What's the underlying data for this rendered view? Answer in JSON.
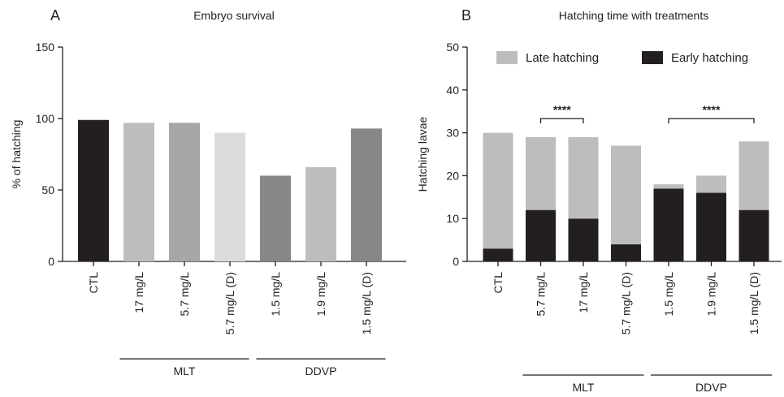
{
  "colors": {
    "black": "#231f20",
    "dark_gray": "#878789",
    "mid_gray": "#a6a6a8",
    "light_gray": "#bdbdbf",
    "lightest_gray": "#dcdcdd"
  },
  "chart_data": [
    {
      "panel": "A",
      "type": "bar",
      "title": "Embryo survival",
      "ylabel": "% of hatching",
      "xlabel": "",
      "ylim": [
        0,
        150
      ],
      "yticks": [
        0,
        50,
        100,
        150
      ],
      "categories": [
        "CTL",
        "17 mg/L",
        "5.7 mg/L",
        "5.7 mg/L (D)",
        "1.5 mg/L",
        "1.9 mg/L",
        "1.5 mg/L (D)"
      ],
      "values": [
        99,
        97,
        97,
        90,
        60,
        66,
        93
      ],
      "bar_colors": [
        "#231f20",
        "#bdbdbf",
        "#a6a6a8",
        "#dcdcdd",
        "#878789",
        "#bdbdbf",
        "#878789"
      ],
      "groups": [
        {
          "label": "MLT",
          "from": 1,
          "to": 3
        },
        {
          "label": "DDVP",
          "from": 4,
          "to": 6
        }
      ],
      "grid": false
    },
    {
      "panel": "B",
      "type": "bar",
      "stacked": true,
      "title": "Hatching time with treatments",
      "ylabel": "Hatching lavae",
      "xlabel": "",
      "ylim": [
        0,
        50
      ],
      "yticks": [
        0,
        10,
        20,
        30,
        40,
        50
      ],
      "categories": [
        "CTL",
        "5.7 mg/L",
        "17 mg/L",
        "5.7 mg/L (D)",
        "1.5 mg/L",
        "1.9 mg/L",
        "1.5 mg/L (D)"
      ],
      "series": [
        {
          "name": "Early hatching",
          "values": [
            3,
            12,
            10,
            4,
            17,
            16,
            12
          ],
          "color": "#231f20"
        },
        {
          "name": "Late hatching",
          "values": [
            27,
            17,
            19,
            23,
            1,
            4,
            16
          ],
          "color": "#bdbdbf"
        }
      ],
      "legend_placement": "top",
      "groups": [
        {
          "label": "MLT",
          "from": 1,
          "to": 3
        },
        {
          "label": "DDVP",
          "from": 4,
          "to": 6
        }
      ],
      "annotations": [
        {
          "text": "****",
          "from": 1,
          "to": 2
        },
        {
          "text": "****",
          "from": 4,
          "to": 6
        }
      ],
      "grid": false
    }
  ]
}
